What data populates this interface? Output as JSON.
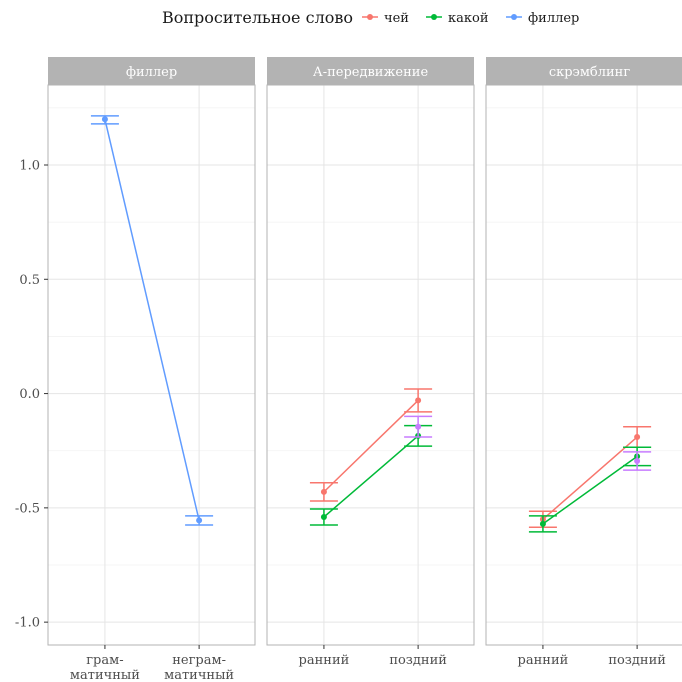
{
  "legend": {
    "title": "Вопросительное слово",
    "items": [
      {
        "name": "чей",
        "color": "#F8766D"
      },
      {
        "name": "какой",
        "color": "#00BA38"
      },
      {
        "name": "филлер",
        "color": "#619CFF"
      }
    ]
  },
  "chart_data": {
    "type": "line",
    "facets": [
      "филлер",
      "А-передвижение",
      "скрэмблинг"
    ],
    "y_ticks": [
      "1.0",
      "0.5",
      "0.0",
      "-0.5",
      "-1.0"
    ],
    "ylim": [
      -1.1,
      1.35
    ],
    "grid": true,
    "legend_position": "top",
    "panels": [
      {
        "facet": "филлер",
        "categories": [
          [
            "грам-",
            "матичный"
          ],
          [
            "неграм-",
            "матичный"
          ]
        ],
        "series": [
          {
            "name": "филлер",
            "color": "#619CFF",
            "values": [
              1.2,
              -0.555
            ],
            "err_low": [
              1.18,
              -0.575
            ],
            "err_high": [
              1.215,
              -0.535
            ]
          }
        ],
        "extra_points": []
      },
      {
        "facet": "А-передвижение",
        "categories": [
          [
            "ранний"
          ],
          [
            "поздний"
          ]
        ],
        "series": [
          {
            "name": "чей",
            "color": "#F8766D",
            "values": [
              -0.43,
              -0.03
            ],
            "err_low": [
              -0.47,
              -0.08
            ],
            "err_high": [
              -0.39,
              0.02
            ]
          },
          {
            "name": "какой",
            "color": "#00BA38",
            "values": [
              -0.54,
              -0.185
            ],
            "err_low": [
              -0.575,
              -0.23
            ],
            "err_high": [
              -0.505,
              -0.14
            ]
          }
        ],
        "extra_points": [
          {
            "color": "#C77CFF",
            "x": 1,
            "value": -0.145,
            "err_low": -0.19,
            "err_high": -0.1
          }
        ]
      },
      {
        "facet": "скрэмблинг",
        "categories": [
          [
            "ранний"
          ],
          [
            "поздний"
          ]
        ],
        "series": [
          {
            "name": "чей",
            "color": "#F8766D",
            "values": [
              -0.55,
              -0.19
            ],
            "err_low": [
              -0.585,
              -0.235
            ],
            "err_high": [
              -0.515,
              -0.145
            ]
          },
          {
            "name": "какой",
            "color": "#00BA38",
            "values": [
              -0.57,
              -0.275
            ],
            "err_low": [
              -0.605,
              -0.315
            ],
            "err_high": [
              -0.535,
              -0.235
            ]
          }
        ],
        "extra_points": [
          {
            "color": "#C77CFF",
            "x": 1,
            "value": -0.295,
            "err_low": -0.335,
            "err_high": -0.255
          }
        ]
      }
    ]
  }
}
